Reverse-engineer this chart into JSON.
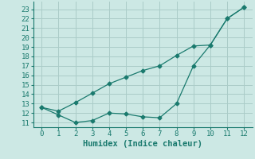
{
  "line1_x": [
    0,
    1,
    2,
    3,
    4,
    5,
    6,
    7,
    8,
    9,
    10,
    11,
    12
  ],
  "line1_y": [
    12.6,
    11.8,
    11.0,
    11.2,
    12.0,
    11.9,
    11.6,
    11.5,
    13.0,
    17.0,
    19.2,
    22.0,
    23.2
  ],
  "line2_x": [
    0,
    1,
    2,
    3,
    4,
    5,
    6,
    7,
    8,
    9,
    10,
    11,
    12
  ],
  "line2_y": [
    12.6,
    12.2,
    13.1,
    14.1,
    15.1,
    15.8,
    16.5,
    17.0,
    18.1,
    19.1,
    19.2,
    22.0,
    23.2
  ],
  "line_color": "#1a7a6e",
  "bg_color": "#cce8e4",
  "grid_color": "#aaccc8",
  "xlabel": "Humidex (Indice chaleur)",
  "ylim": [
    10.5,
    23.8
  ],
  "xlim": [
    -0.5,
    12.5
  ],
  "yticks": [
    11,
    12,
    13,
    14,
    15,
    16,
    17,
    18,
    19,
    20,
    21,
    22,
    23
  ],
  "xticks": [
    0,
    1,
    2,
    3,
    4,
    5,
    6,
    7,
    8,
    9,
    10,
    11,
    12
  ],
  "marker": "D",
  "marker_size": 2.5,
  "linewidth": 0.9,
  "xlabel_fontsize": 7.5,
  "tick_fontsize": 6.5
}
